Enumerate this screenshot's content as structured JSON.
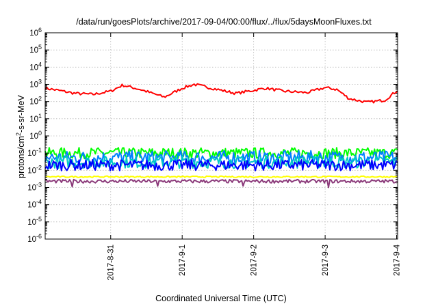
{
  "chart_data": {
    "type": "line",
    "title": "/data/run/goesPlots/archive/2017-09-04/00:00/flux/../flux/5daysMoonFluxes.txt",
    "xlabel": "Coordinated Universal Time (UTC)",
    "ylabel": "protons/cm²-s-sr-MeV",
    "ylabel_parts": [
      "protons/cm",
      "2",
      "-s-sr-MeV"
    ],
    "y_scale": "log",
    "ylim_exponents": [
      -6,
      6
    ],
    "y_tick_exponents": [
      -6,
      -5,
      -4,
      -3,
      -2,
      -1,
      0,
      1,
      2,
      3,
      4,
      5,
      6
    ],
    "y_tick_base": "10",
    "x_range_days": [
      "2017-08-30 02:00",
      "2017-09-04 00:20"
    ],
    "x_ticks": [
      {
        "label": "2017-8-31",
        "date": "2017-08-31"
      },
      {
        "label": "2017-9-1",
        "date": "2017-09-01"
      },
      {
        "label": "2017-9-2",
        "date": "2017-09-02"
      },
      {
        "label": "2017-9-3",
        "date": "2017-09-03"
      },
      {
        "label": "2017-9-4",
        "date": "2017-09-04"
      }
    ],
    "grid": true,
    "legend": "none",
    "series": [
      {
        "color": "#ff0000",
        "base": 300,
        "spread": 0.16,
        "points": [
          [
            "2017-08-30 02:00",
            600
          ],
          [
            "2017-08-30 06:00",
            460
          ],
          [
            "2017-08-30 12:00",
            300
          ],
          [
            "2017-08-30 18:00",
            260
          ],
          [
            "2017-08-31 00:00",
            400
          ],
          [
            "2017-08-31 04:00",
            900
          ],
          [
            "2017-08-31 10:00",
            500
          ],
          [
            "2017-08-31 18:00",
            180
          ],
          [
            "2017-09-01 00:00",
            600
          ],
          [
            "2017-09-01 04:00",
            1000
          ],
          [
            "2017-09-01 12:00",
            500
          ],
          [
            "2017-09-01 18:00",
            300
          ],
          [
            "2017-09-02 00:00",
            450
          ],
          [
            "2017-09-02 04:00",
            600
          ],
          [
            "2017-09-02 10:00",
            400
          ],
          [
            "2017-09-02 18:00",
            330
          ],
          [
            "2017-09-03 00:00",
            650
          ],
          [
            "2017-09-03 04:00",
            500
          ],
          [
            "2017-09-03 08:00",
            150
          ],
          [
            "2017-09-03 14:00",
            90
          ],
          [
            "2017-09-03 20:00",
            120
          ],
          [
            "2017-09-04 00:20",
            450
          ]
        ]
      },
      {
        "color": "#00ff00",
        "base": 0.1,
        "spread": 0.16,
        "points": []
      },
      {
        "color": "#0080ff",
        "base": 0.055,
        "spread": 0.2,
        "points": []
      },
      {
        "color": "#00c8c8",
        "base": 0.03,
        "spread": 0.18,
        "points": []
      },
      {
        "color": "#0000ff",
        "base": 0.02,
        "spread": 0.16,
        "points": []
      },
      {
        "color": "#ffff00",
        "base": 0.0042,
        "spread": 0.02,
        "points": []
      },
      {
        "color": "#8b3a7a",
        "base": 0.0023,
        "spread": 0.05,
        "points": []
      }
    ]
  }
}
